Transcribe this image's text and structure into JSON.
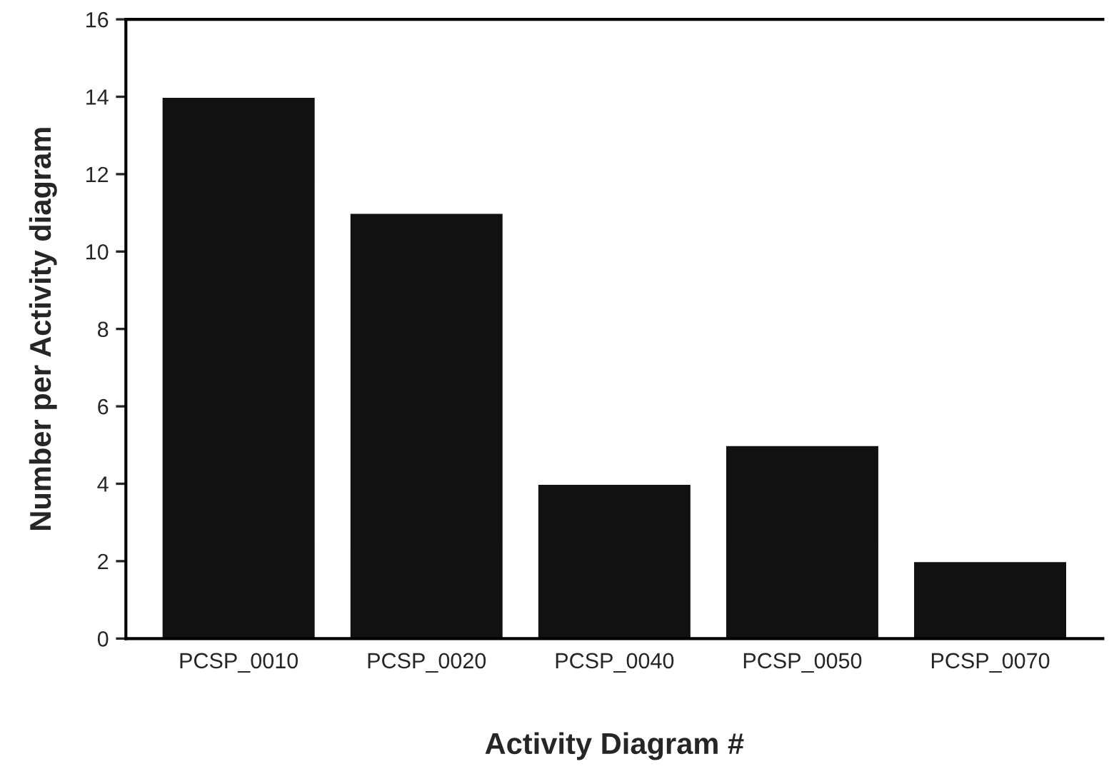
{
  "chart_data": {
    "type": "bar",
    "xlabel": "Activity Diagram #",
    "ylabel": "Number per Activity diagram",
    "categories": [
      "PCSP_0010",
      "PCSP_0020",
      "PCSP_0040",
      "PCSP_0050",
      "PCSP_0070"
    ],
    "values": [
      14,
      11,
      4,
      5,
      2
    ],
    "color": "#111111",
    "ylim": [
      0,
      16
    ],
    "yticks": [
      0,
      2,
      4,
      6,
      8,
      10,
      12,
      14,
      16
    ],
    "grid": false,
    "legend": false
  }
}
